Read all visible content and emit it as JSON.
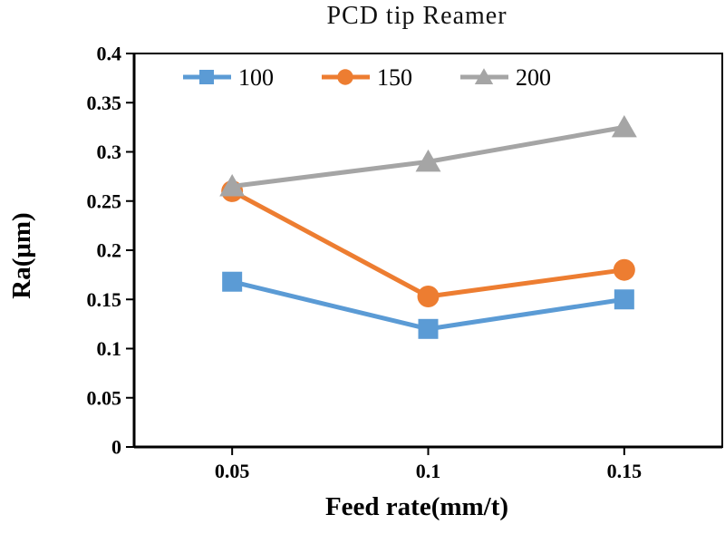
{
  "chart_data": {
    "type": "line",
    "title": "PCD tip Reamer",
    "xlabel": "Feed rate(mm/t)",
    "ylabel": "Ra(μm)",
    "categories": [
      "0.05",
      "0.1",
      "0.15"
    ],
    "x_values": [
      0.05,
      0.1,
      0.15
    ],
    "series": [
      {
        "name": "100",
        "marker": "square",
        "color": "#5B9BD5",
        "values": [
          0.168,
          0.12,
          0.15
        ]
      },
      {
        "name": "150",
        "marker": "circle",
        "color": "#ED7D31",
        "values": [
          0.26,
          0.153,
          0.18
        ]
      },
      {
        "name": "200",
        "marker": "triangle",
        "color": "#A5A5A5",
        "values": [
          0.265,
          0.29,
          0.325
        ]
      }
    ],
    "ylim": [
      0,
      0.4
    ],
    "yticks": [
      "0",
      "0.05",
      "0.1",
      "0.15",
      "0.2",
      "0.25",
      "0.3",
      "0.35",
      "0.4"
    ],
    "grid": false,
    "legend_position": "top-inside-horizontal",
    "axis_color": "#000000",
    "background_color": "#ffffff"
  }
}
